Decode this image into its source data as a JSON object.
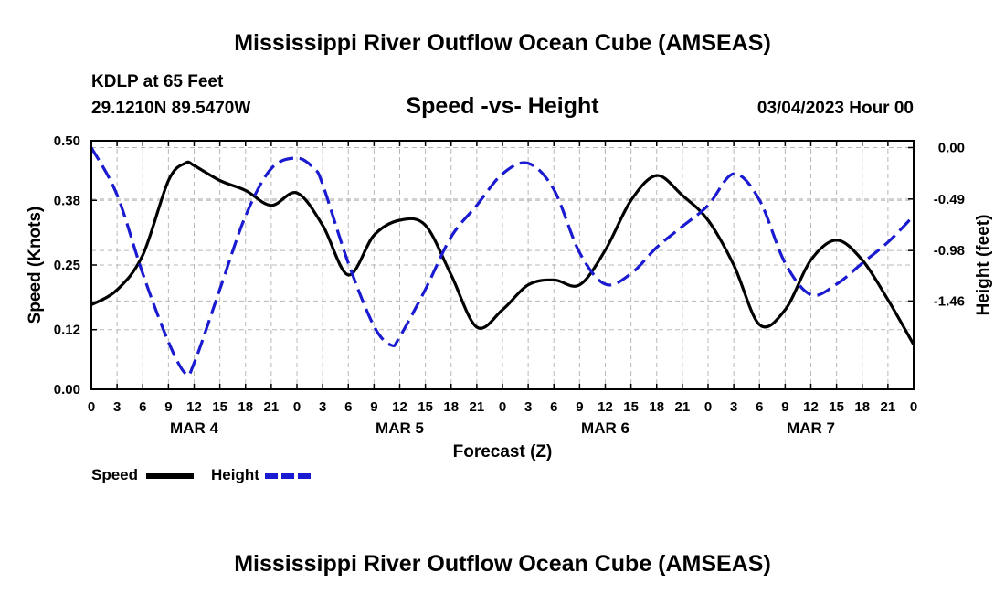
{
  "chart_data": {
    "type": "line",
    "title": "Mississippi River Outflow Ocean Cube (AMSEAS)",
    "subtitle": "Speed -vs- Height",
    "station": "KDLP at 65 Feet",
    "coords": "29.1210N  89.5470W",
    "datetime": "03/04/2023 Hour 00",
    "xlabel": "Forecast (Z)",
    "ylabel_left": "Speed (Knots)",
    "ylabel_right": "Height (feet)",
    "x_ticks": [
      "0",
      "3",
      "6",
      "9",
      "12",
      "15",
      "18",
      "21",
      "0",
      "3",
      "6",
      "9",
      "12",
      "15",
      "18",
      "21",
      "0",
      "3",
      "6",
      "9",
      "12",
      "15",
      "18",
      "21",
      "0",
      "3",
      "6",
      "9",
      "12",
      "15",
      "18",
      "21",
      "0"
    ],
    "day_labels": [
      "MAR 4",
      "MAR 5",
      "MAR 6",
      "MAR 7"
    ],
    "y_left_ticks": [
      "0.50",
      "0.38",
      "0.25",
      "0.12",
      "0.00"
    ],
    "y_right_ticks": [
      "0.00",
      "-0.49",
      "-0.98",
      "-1.46"
    ],
    "ylim_left": [
      0,
      0.5
    ],
    "ylim_right": [
      -2.3,
      0.065
    ],
    "xlim": [
      0,
      96
    ],
    "legend": [
      {
        "name": "Speed",
        "color": "#000000",
        "dash": "solid"
      },
      {
        "name": "Height",
        "color": "#0000cc",
        "dash": "dashed"
      }
    ],
    "series": [
      {
        "name": "Speed",
        "color": "#000000",
        "x": [
          0,
          3,
          6,
          9,
          11,
          12,
          15,
          18,
          21,
          24,
          27,
          30,
          33,
          36,
          39,
          42,
          45,
          48,
          51,
          54,
          57,
          60,
          63,
          66,
          69,
          72,
          75,
          78,
          81,
          84,
          87,
          90,
          93,
          96
        ],
        "y": [
          0.17,
          0.2,
          0.27,
          0.42,
          0.455,
          0.45,
          0.42,
          0.4,
          0.37,
          0.395,
          0.33,
          0.23,
          0.31,
          0.34,
          0.33,
          0.23,
          0.125,
          0.16,
          0.21,
          0.22,
          0.21,
          0.28,
          0.38,
          0.43,
          0.39,
          0.34,
          0.25,
          0.13,
          0.16,
          0.26,
          0.3,
          0.26,
          0.18,
          0.09
        ]
      },
      {
        "name": "Height",
        "color": "#0000cc",
        "x": [
          0,
          3,
          6,
          9,
          11,
          12,
          15,
          18,
          21,
          24,
          26,
          27,
          30,
          33,
          35,
          36,
          39,
          42,
          45,
          48,
          51,
          54,
          57,
          60,
          63,
          66,
          69,
          72,
          75,
          78,
          81,
          84,
          87,
          90,
          93,
          96
        ],
        "y": [
          0.0,
          -0.45,
          -1.2,
          -1.85,
          -2.15,
          -2.05,
          -1.35,
          -0.65,
          -0.2,
          -0.1,
          -0.2,
          -0.35,
          -1.1,
          -1.7,
          -1.88,
          -1.8,
          -1.35,
          -0.85,
          -0.55,
          -0.25,
          -0.15,
          -0.4,
          -1.0,
          -1.3,
          -1.2,
          -0.95,
          -0.75,
          -0.55,
          -0.25,
          -0.5,
          -1.1,
          -1.4,
          -1.3,
          -1.1,
          -0.9,
          -0.65
        ]
      }
    ]
  },
  "footer": {
    "title": "Mississippi River Outflow Ocean Cube (AMSEAS)"
  }
}
